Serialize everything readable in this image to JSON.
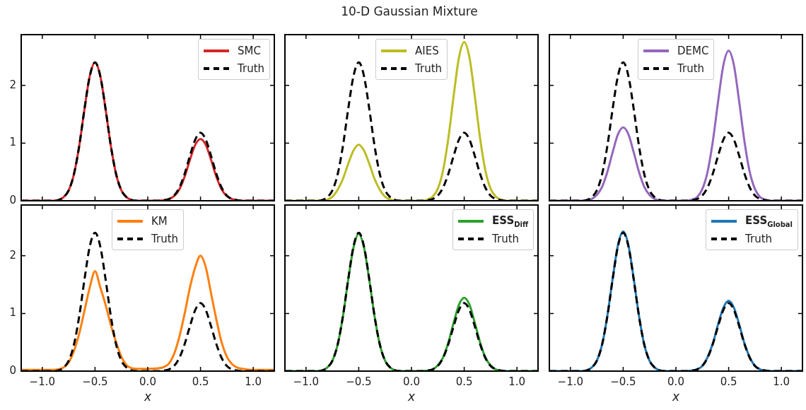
{
  "chart_data": [
    {
      "type": "line",
      "xlim": [
        -1.2,
        1.2
      ],
      "ylim": [
        0,
        2.88
      ],
      "xticks": [
        {
          "value": -1,
          "label": null
        },
        {
          "value": -0.5,
          "label": null
        },
        {
          "value": 0,
          "label": null
        },
        {
          "value": 0.5,
          "label": null
        },
        {
          "value": 1,
          "label": null
        }
      ],
      "yticks": [
        0,
        1,
        2
      ],
      "tick_labels": "y",
      "legend": "top right",
      "marker": "none",
      "x": [
        -1.2,
        -1.0,
        -0.9,
        -0.85,
        -0.8,
        -0.75,
        -0.7,
        -0.65,
        -0.6,
        -0.55,
        -0.5,
        -0.45,
        -0.4,
        -0.35,
        -0.3,
        -0.25,
        -0.2,
        -0.15,
        -0.1,
        0,
        0.1,
        0.15,
        0.2,
        0.25,
        0.3,
        0.35,
        0.4,
        0.45,
        0.5,
        0.55,
        0.6,
        0.65,
        0.7,
        0.75,
        0.8,
        0.85,
        0.9,
        1.0,
        1.2
      ],
      "series": [
        {
          "name": "SMC",
          "color": "#d62728",
          "line_style": "solid",
          "values": [
            0,
            0,
            0,
            0.01,
            0.06,
            0.18,
            0.46,
            0.95,
            1.59,
            2.16,
            2.4,
            2.16,
            1.59,
            0.95,
            0.46,
            0.18,
            0.06,
            0.01,
            0,
            0,
            0,
            0.01,
            0.03,
            0.08,
            0.2,
            0.42,
            0.71,
            0.97,
            1.07,
            0.97,
            0.71,
            0.42,
            0.2,
            0.08,
            0.03,
            0.01,
            0,
            0,
            0
          ]
        },
        {
          "name": "Truth",
          "color": "#000000",
          "line_style": "dashed",
          "values": [
            0,
            0,
            0,
            0.01,
            0.06,
            0.18,
            0.46,
            0.95,
            1.59,
            2.16,
            2.4,
            2.16,
            1.59,
            0.95,
            0.46,
            0.18,
            0.06,
            0.01,
            0,
            0,
            0,
            0.01,
            0.03,
            0.09,
            0.23,
            0.47,
            0.78,
            1.06,
            1.18,
            1.06,
            0.78,
            0.47,
            0.23,
            0.09,
            0.03,
            0.01,
            0,
            0,
            0
          ]
        }
      ]
    },
    {
      "type": "line",
      "title": "10-D Gaussian Mixture",
      "xlim": [
        -1.2,
        1.2
      ],
      "ylim": [
        0,
        2.88
      ],
      "xticks": [
        {
          "value": -1,
          "label": null
        },
        {
          "value": -0.5,
          "label": null
        },
        {
          "value": 0,
          "label": null
        },
        {
          "value": 0.5,
          "label": null
        },
        {
          "value": 1,
          "label": null
        }
      ],
      "yticks": [
        {
          "value": 0,
          "label": null
        },
        {
          "value": 1,
          "label": null
        },
        {
          "value": 2,
          "label": null
        }
      ],
      "tick_labels": false,
      "legend": "top",
      "marker": "none",
      "x": [
        -1.2,
        -1.0,
        -0.9,
        -0.85,
        -0.8,
        -0.75,
        -0.7,
        -0.65,
        -0.6,
        -0.55,
        -0.5,
        -0.45,
        -0.4,
        -0.35,
        -0.3,
        -0.25,
        -0.2,
        -0.15,
        -0.1,
        0,
        0.1,
        0.15,
        0.2,
        0.25,
        0.3,
        0.35,
        0.4,
        0.45,
        0.5,
        0.55,
        0.6,
        0.65,
        0.7,
        0.75,
        0.8,
        0.85,
        0.9,
        1.0,
        1.2
      ],
      "series": [
        {
          "name": "AIES",
          "color": "#bcbd22",
          "line_style": "solid",
          "values": [
            0,
            0,
            0,
            0.01,
            0.02,
            0.07,
            0.19,
            0.38,
            0.64,
            0.87,
            0.97,
            0.87,
            0.64,
            0.38,
            0.19,
            0.07,
            0.02,
            0.01,
            0,
            0,
            0,
            0.02,
            0.07,
            0.21,
            0.53,
            1.09,
            1.82,
            2.48,
            2.75,
            2.48,
            1.82,
            1.09,
            0.53,
            0.21,
            0.07,
            0.02,
            0,
            0,
            0
          ]
        },
        {
          "name": "Truth",
          "color": "#000000",
          "line_style": "dashed",
          "values": [
            0,
            0,
            0,
            0.01,
            0.06,
            0.18,
            0.46,
            0.95,
            1.59,
            2.16,
            2.4,
            2.16,
            1.59,
            0.95,
            0.46,
            0.18,
            0.06,
            0.01,
            0,
            0,
            0,
            0.01,
            0.03,
            0.09,
            0.23,
            0.47,
            0.78,
            1.06,
            1.18,
            1.06,
            0.78,
            0.47,
            0.23,
            0.09,
            0.03,
            0.01,
            0,
            0,
            0
          ]
        }
      ]
    },
    {
      "type": "line",
      "xlim": [
        -1.2,
        1.2
      ],
      "ylim": [
        0,
        2.88
      ],
      "xticks": [
        {
          "value": -1,
          "label": null
        },
        {
          "value": -0.5,
          "label": null
        },
        {
          "value": 0,
          "label": null
        },
        {
          "value": 0.5,
          "label": null
        },
        {
          "value": 1,
          "label": null
        }
      ],
      "yticks": [
        {
          "value": 0,
          "label": null
        },
        {
          "value": 1,
          "label": null
        },
        {
          "value": 2,
          "label": null
        }
      ],
      "tick_labels": false,
      "legend": "top",
      "marker": "none",
      "x": [
        -1.2,
        -1.0,
        -0.9,
        -0.85,
        -0.8,
        -0.75,
        -0.7,
        -0.65,
        -0.6,
        -0.55,
        -0.5,
        -0.45,
        -0.4,
        -0.35,
        -0.3,
        -0.25,
        -0.2,
        -0.15,
        -0.1,
        0,
        0.1,
        0.15,
        0.2,
        0.25,
        0.3,
        0.35,
        0.4,
        0.45,
        0.5,
        0.55,
        0.6,
        0.65,
        0.7,
        0.75,
        0.8,
        0.85,
        0.9,
        1.0,
        1.2
      ],
      "series": [
        {
          "name": "DEMC",
          "color": "#9467bd",
          "line_style": "solid",
          "values": [
            0,
            0,
            0,
            0.01,
            0.03,
            0.1,
            0.24,
            0.5,
            0.84,
            1.15,
            1.27,
            1.15,
            0.84,
            0.5,
            0.24,
            0.1,
            0.03,
            0.01,
            0,
            0,
            0,
            0.02,
            0.06,
            0.2,
            0.5,
            1.03,
            1.72,
            2.35,
            2.6,
            2.35,
            1.72,
            1.03,
            0.5,
            0.2,
            0.06,
            0.02,
            0,
            0,
            0
          ]
        },
        {
          "name": "Truth",
          "color": "#000000",
          "line_style": "dashed",
          "values": [
            0,
            0,
            0,
            0.01,
            0.06,
            0.18,
            0.46,
            0.95,
            1.59,
            2.16,
            2.4,
            2.16,
            1.59,
            0.95,
            0.46,
            0.18,
            0.06,
            0.01,
            0,
            0,
            0,
            0.01,
            0.03,
            0.09,
            0.23,
            0.47,
            0.78,
            1.06,
            1.18,
            1.06,
            0.78,
            0.47,
            0.23,
            0.09,
            0.03,
            0.01,
            0,
            0,
            0
          ]
        }
      ]
    },
    {
      "type": "line",
      "xlabel": "x",
      "xlim": [
        -1.2,
        1.2
      ],
      "ylim": [
        0,
        2.88
      ],
      "xticks": [
        {
          "value": -1,
          "label": "−1.0"
        },
        {
          "value": -0.5,
          "label": "−0.5"
        },
        {
          "value": 0,
          "label": "0.0"
        },
        {
          "value": 0.5,
          "label": "0.5"
        },
        {
          "value": 1,
          "label": "1.0"
        }
      ],
      "yticks": [
        0,
        1,
        2
      ],
      "legend": "top",
      "marker": "none",
      "x": [
        -1.2,
        -1.0,
        -0.9,
        -0.85,
        -0.8,
        -0.75,
        -0.7,
        -0.65,
        -0.6,
        -0.55,
        -0.5,
        -0.45,
        -0.4,
        -0.35,
        -0.3,
        -0.25,
        -0.2,
        -0.15,
        -0.1,
        0,
        0.1,
        0.15,
        0.2,
        0.25,
        0.3,
        0.35,
        0.4,
        0.45,
        0.5,
        0.55,
        0.6,
        0.65,
        0.7,
        0.75,
        0.8,
        0.85,
        0.9,
        1.0,
        1.2
      ],
      "series": [
        {
          "name": "KM",
          "color": "#ff7f0e",
          "line_style": "solid",
          "values": [
            0.02,
            0.02,
            0.02,
            0.03,
            0.06,
            0.15,
            0.35,
            0.65,
            1.05,
            1.45,
            1.73,
            1.45,
            1.15,
            0.8,
            0.5,
            0.25,
            0.1,
            0.05,
            0.04,
            0.04,
            0.05,
            0.07,
            0.13,
            0.3,
            0.6,
            1.0,
            1.45,
            1.8,
            2.0,
            1.8,
            1.35,
            0.9,
            0.5,
            0.25,
            0.12,
            0.06,
            0.04,
            0.02,
            0.02
          ]
        },
        {
          "name": "Truth",
          "color": "#000000",
          "line_style": "dashed",
          "values": [
            0,
            0,
            0,
            0.01,
            0.06,
            0.18,
            0.46,
            0.95,
            1.59,
            2.16,
            2.4,
            2.16,
            1.59,
            0.95,
            0.46,
            0.18,
            0.06,
            0.01,
            0,
            0,
            0,
            0.01,
            0.03,
            0.09,
            0.23,
            0.47,
            0.78,
            1.06,
            1.18,
            1.06,
            0.78,
            0.47,
            0.23,
            0.09,
            0.03,
            0.01,
            0,
            0,
            0
          ]
        }
      ]
    },
    {
      "type": "line",
      "xlabel": "x",
      "xlim": [
        -1.2,
        1.2
      ],
      "ylim": [
        0,
        2.88
      ],
      "xticks": [
        {
          "value": -1,
          "label": "−1.0"
        },
        {
          "value": -0.5,
          "label": "−0.5"
        },
        {
          "value": 0,
          "label": "0.0"
        },
        {
          "value": 0.5,
          "label": "0.5"
        },
        {
          "value": 1,
          "label": "1.0"
        }
      ],
      "yticks": [
        {
          "value": 0,
          "label": null
        },
        {
          "value": 1,
          "label": null
        },
        {
          "value": 2,
          "label": null
        }
      ],
      "tick_labels": "x",
      "legend": "top right",
      "marker": "none",
      "x": [
        -1.2,
        -1.0,
        -0.9,
        -0.85,
        -0.8,
        -0.75,
        -0.7,
        -0.65,
        -0.6,
        -0.55,
        -0.5,
        -0.45,
        -0.4,
        -0.35,
        -0.3,
        -0.25,
        -0.2,
        -0.15,
        -0.1,
        0,
        0.1,
        0.15,
        0.2,
        0.25,
        0.3,
        0.35,
        0.4,
        0.45,
        0.5,
        0.55,
        0.6,
        0.65,
        0.7,
        0.75,
        0.8,
        0.85,
        0.9,
        1.0,
        1.2
      ],
      "series": [
        {
          "name": "ESS$_{Diff}$",
          "color": "#2ca02c",
          "line_style": "solid",
          "values": [
            0,
            0,
            0,
            0.01,
            0.06,
            0.18,
            0.46,
            0.95,
            1.58,
            2.14,
            2.38,
            2.14,
            1.58,
            0.95,
            0.46,
            0.18,
            0.06,
            0.01,
            0,
            0,
            0,
            0.01,
            0.03,
            0.1,
            0.24,
            0.5,
            0.84,
            1.15,
            1.27,
            1.15,
            0.84,
            0.5,
            0.24,
            0.1,
            0.03,
            0.01,
            0,
            0,
            0
          ]
        },
        {
          "name": "Truth",
          "color": "#000000",
          "line_style": "dashed",
          "values": [
            0,
            0,
            0,
            0.01,
            0.06,
            0.18,
            0.46,
            0.95,
            1.59,
            2.16,
            2.4,
            2.16,
            1.59,
            0.95,
            0.46,
            0.18,
            0.06,
            0.01,
            0,
            0,
            0,
            0.01,
            0.03,
            0.09,
            0.23,
            0.47,
            0.78,
            1.06,
            1.18,
            1.06,
            0.78,
            0.47,
            0.23,
            0.09,
            0.03,
            0.01,
            0,
            0,
            0
          ]
        }
      ]
    },
    {
      "type": "line",
      "xlabel": "x",
      "xlim": [
        -1.2,
        1.2
      ],
      "ylim": [
        0,
        2.88
      ],
      "xticks": [
        {
          "value": -1,
          "label": "−1.0"
        },
        {
          "value": -0.5,
          "label": "−0.5"
        },
        {
          "value": 0,
          "label": "0.0"
        },
        {
          "value": 0.5,
          "label": "0.5"
        },
        {
          "value": 1,
          "label": "1.0"
        }
      ],
      "yticks": [
        {
          "value": 0,
          "label": null
        },
        {
          "value": 1,
          "label": null
        },
        {
          "value": 2,
          "label": null
        }
      ],
      "tick_labels": "x",
      "legend": "top right",
      "marker": "none",
      "x": [
        -1.2,
        -1.0,
        -0.9,
        -0.85,
        -0.8,
        -0.75,
        -0.7,
        -0.65,
        -0.6,
        -0.55,
        -0.5,
        -0.45,
        -0.4,
        -0.35,
        -0.3,
        -0.25,
        -0.2,
        -0.15,
        -0.1,
        0,
        0.1,
        0.15,
        0.2,
        0.25,
        0.3,
        0.35,
        0.4,
        0.45,
        0.5,
        0.55,
        0.6,
        0.65,
        0.7,
        0.75,
        0.8,
        0.85,
        0.9,
        1.0,
        1.2
      ],
      "series": [
        {
          "name": "ESS$_{Global}$",
          "color": "#1f77b4",
          "line_style": "solid",
          "values": [
            0,
            0,
            0,
            0.01,
            0.06,
            0.18,
            0.46,
            0.96,
            1.6,
            2.18,
            2.42,
            2.18,
            1.6,
            0.96,
            0.46,
            0.18,
            0.06,
            0.01,
            0,
            0,
            0,
            0.01,
            0.03,
            0.09,
            0.24,
            0.48,
            0.81,
            1.1,
            1.22,
            1.1,
            0.81,
            0.48,
            0.24,
            0.09,
            0.03,
            0.01,
            0,
            0,
            0
          ]
        },
        {
          "name": "Truth",
          "color": "#000000",
          "line_style": "dashed",
          "values": [
            0,
            0,
            0,
            0.01,
            0.06,
            0.18,
            0.46,
            0.95,
            1.59,
            2.16,
            2.4,
            2.16,
            1.59,
            0.95,
            0.46,
            0.18,
            0.06,
            0.01,
            0,
            0,
            0,
            0.01,
            0.03,
            0.09,
            0.23,
            0.47,
            0.78,
            1.06,
            1.18,
            1.06,
            0.78,
            0.47,
            0.23,
            0.09,
            0.03,
            0.01,
            0,
            0,
            0
          ]
        }
      ]
    }
  ]
}
